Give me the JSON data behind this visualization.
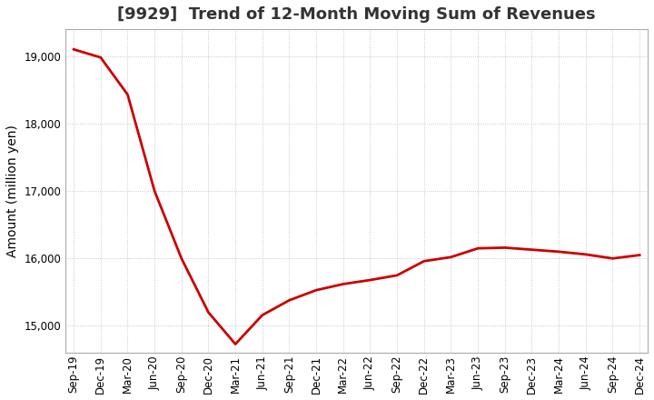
{
  "title": "[9929]  Trend of 12-Month Moving Sum of Revenues",
  "ylabel": "Amount (million yen)",
  "line_color": "#cc0000",
  "background_color": "#ffffff",
  "plot_bg_color": "#ffffff",
  "grid_color": "#bbbbbb",
  "x_labels": [
    "Sep-19",
    "Dec-19",
    "Mar-20",
    "Jun-20",
    "Sep-20",
    "Dec-20",
    "Mar-21",
    "Jun-21",
    "Sep-21",
    "Dec-21",
    "Mar-22",
    "Jun-22",
    "Sep-22",
    "Dec-22",
    "Mar-23",
    "Jun-23",
    "Sep-23",
    "Dec-23",
    "Mar-24",
    "Jun-24",
    "Sep-24",
    "Dec-24"
  ],
  "y_values": [
    19100,
    18980,
    18430,
    17000,
    16000,
    15200,
    14730,
    15160,
    15380,
    15530,
    15620,
    15680,
    15750,
    15960,
    16020,
    16150,
    16160,
    16130,
    16100,
    16060,
    16000,
    16050
  ],
  "ylim": [
    14600,
    19400
  ],
  "yticks": [
    15000,
    16000,
    17000,
    18000,
    19000
  ],
  "title_fontsize": 13,
  "axis_label_fontsize": 10,
  "tick_fontsize": 8.5
}
